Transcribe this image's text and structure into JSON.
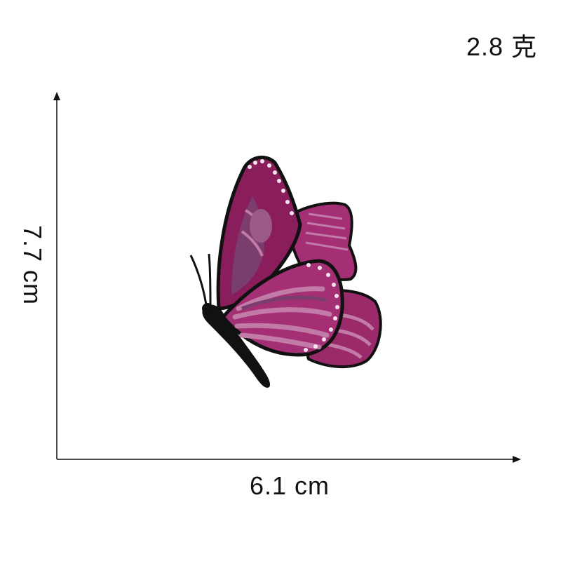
{
  "weight": "2.8 克",
  "dimensions": {
    "width": "6.1 cm",
    "height": "7.7 cm"
  },
  "subject": {
    "icon": "butterfly-patch-icon",
    "colors": {
      "wing_dark": "#8a1e5c",
      "wing_mid": "#a52f75",
      "wing_light": "#c27aa6",
      "wing_shade": "#7a3e6e",
      "outline": "#111111",
      "dots": "#f4e6ee"
    }
  },
  "axis_color": "#111111"
}
